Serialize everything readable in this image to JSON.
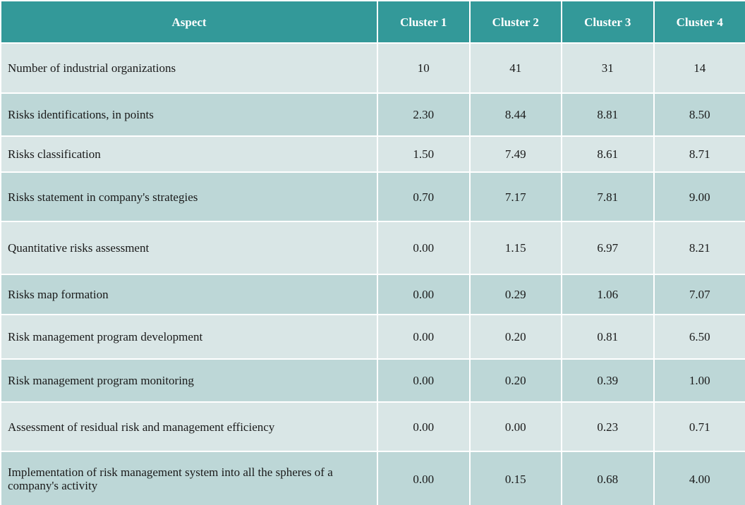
{
  "table": {
    "headers": [
      "Aspect",
      "Cluster 1",
      "Cluster 2",
      "Cluster 3",
      "Cluster 4"
    ],
    "rows": [
      {
        "aspect": "Number of industrial organizations",
        "values": [
          "10",
          "41",
          "31",
          "14"
        ]
      },
      {
        "aspect": "Risks identifications, in points",
        "values": [
          "2.30",
          "8.44",
          "8.81",
          "8.50"
        ]
      },
      {
        "aspect": "Risks classification",
        "values": [
          "1.50",
          "7.49",
          "8.61",
          "8.71"
        ]
      },
      {
        "aspect": "Risks statement in company's strategies",
        "values": [
          "0.70",
          "7.17",
          "7.81",
          "9.00"
        ]
      },
      {
        "aspect": "Quantitative risks assessment",
        "values": [
          "0.00",
          "1.15",
          "6.97",
          "8.21"
        ]
      },
      {
        "aspect": "Risks map formation",
        "values": [
          "0.00",
          "0.29",
          "1.06",
          "7.07"
        ]
      },
      {
        "aspect": "Risk management program development",
        "values": [
          "0.00",
          "0.20",
          "0.81",
          "6.50"
        ]
      },
      {
        "aspect": "Risk management program monitoring",
        "values": [
          "0.00",
          "0.20",
          "0.39",
          "1.00"
        ]
      },
      {
        "aspect": "Assessment of residual risk and management efficiency",
        "values": [
          "0.00",
          "0.00",
          "0.23",
          "0.71"
        ]
      },
      {
        "aspect": " Implementation of risk management system into all the spheres of a company's activity",
        "values": [
          "0.00",
          "0.15",
          "0.68",
          "4.00"
        ]
      }
    ]
  },
  "colors": {
    "header_bg": "#339999",
    "row_light": "#d9e6e6",
    "row_dark": "#bdd7d7"
  }
}
